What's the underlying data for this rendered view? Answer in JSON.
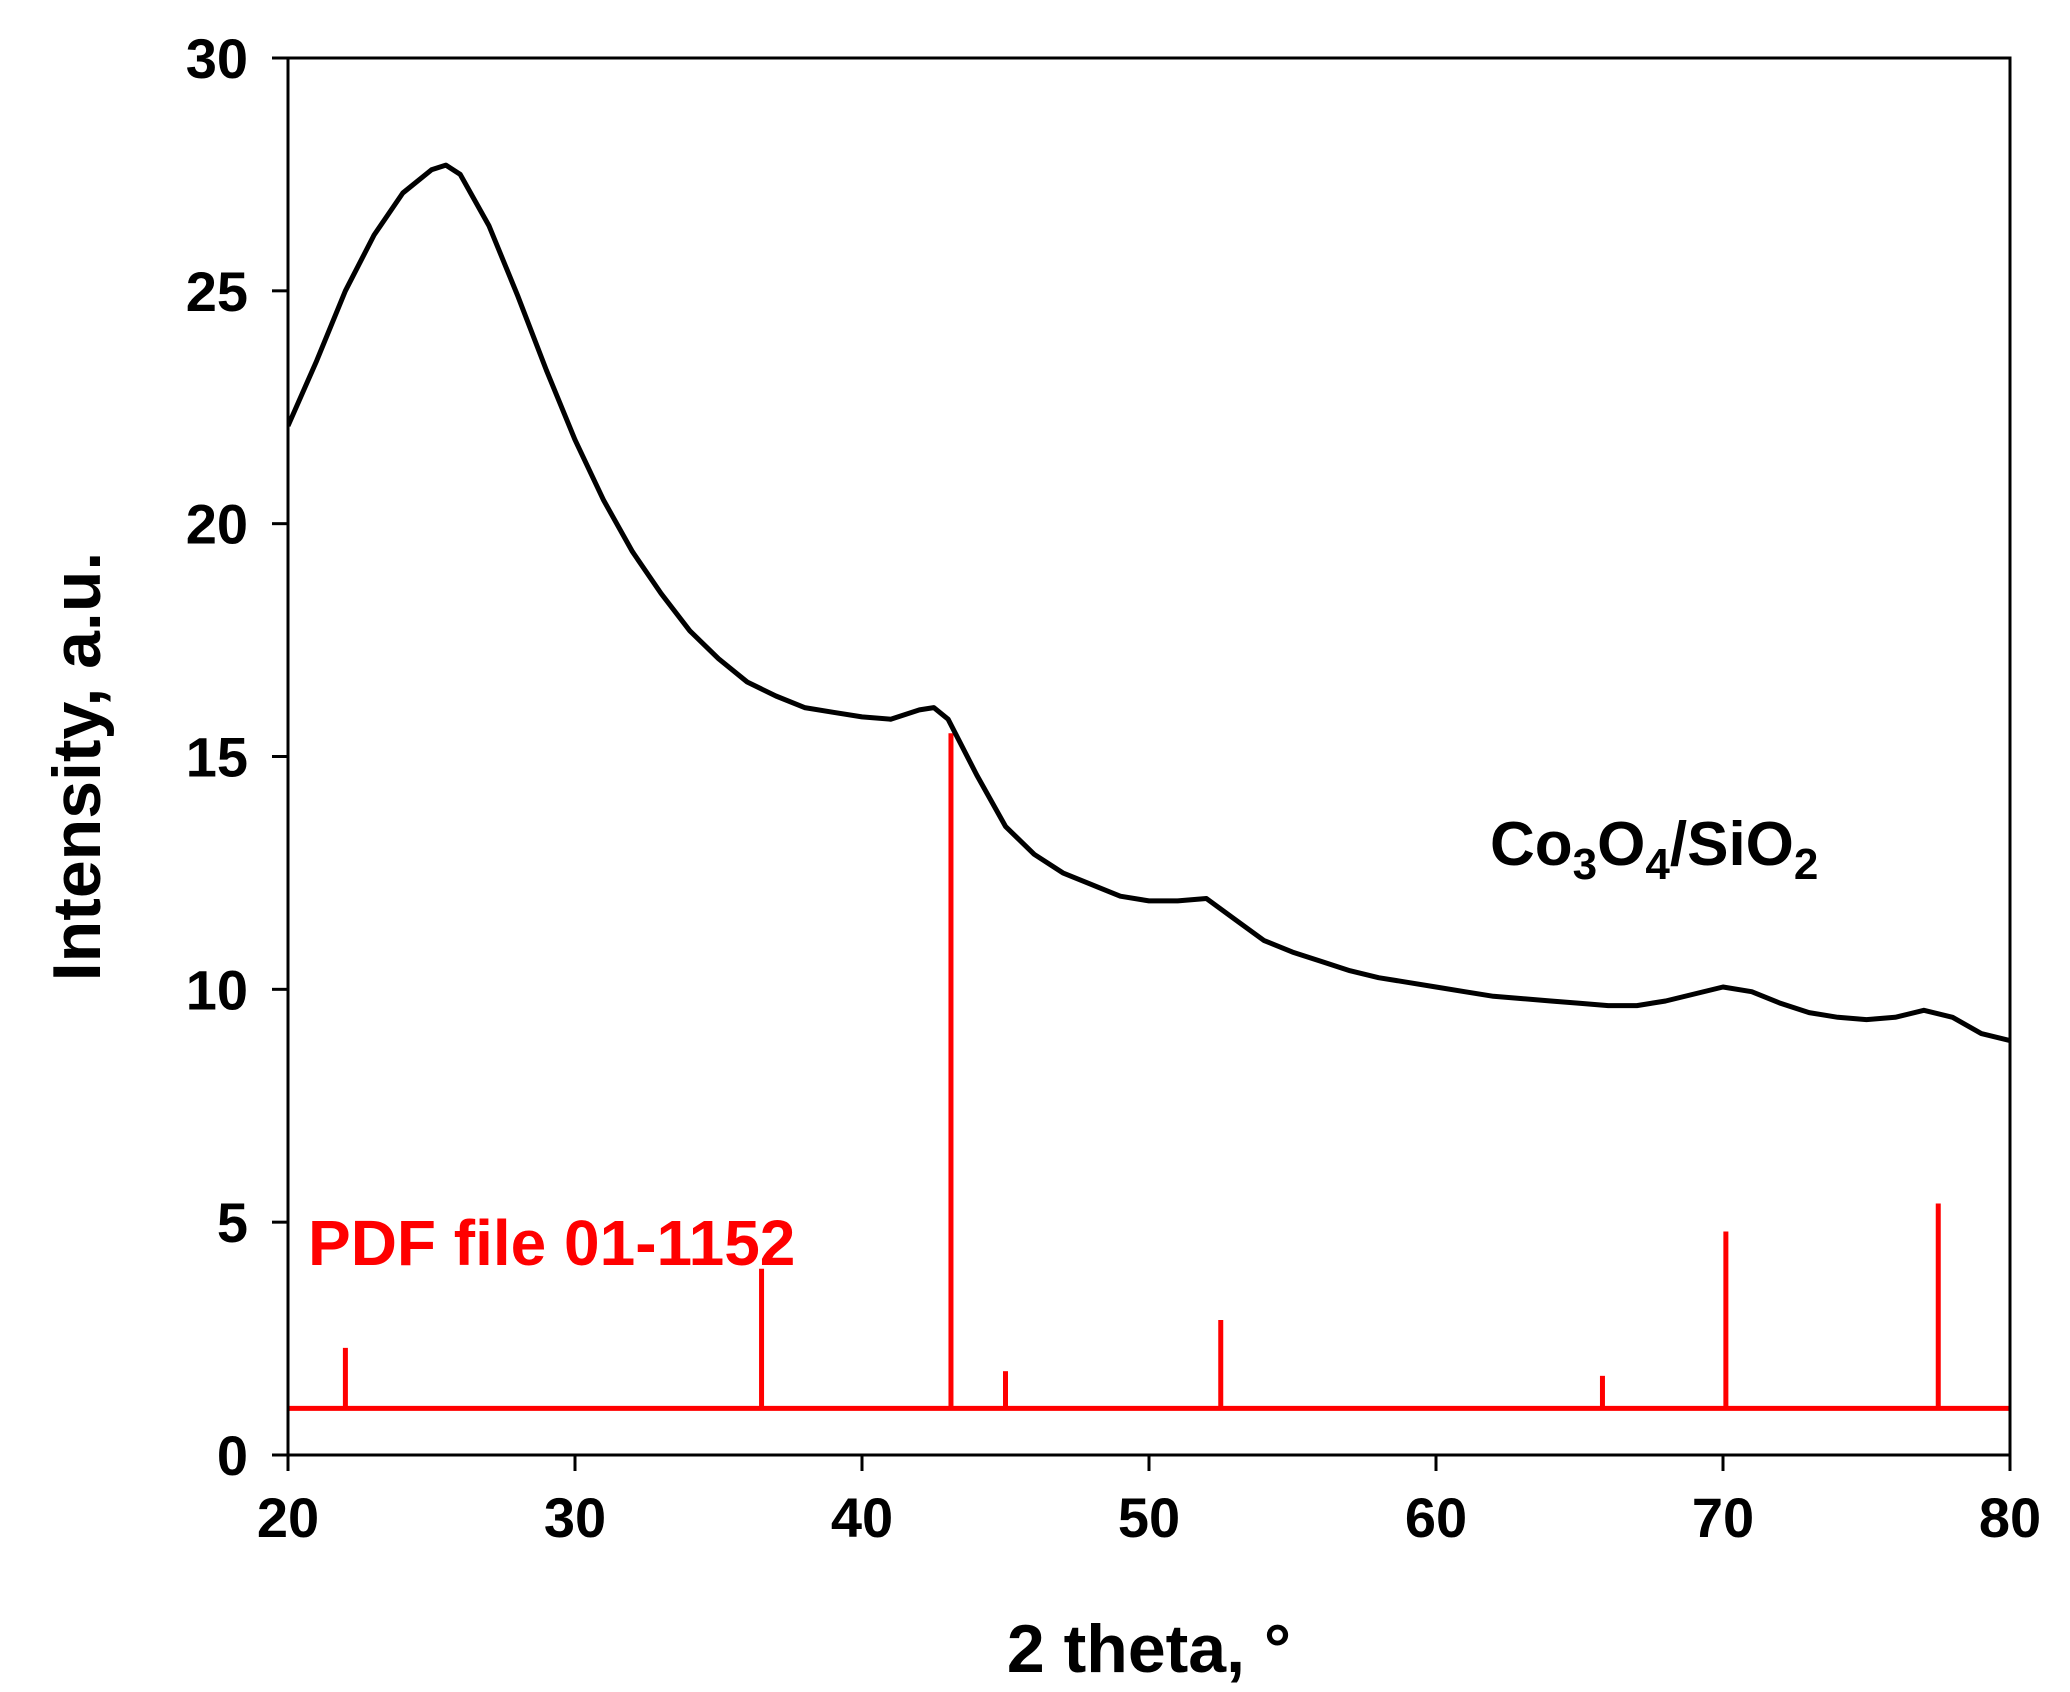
{
  "chart_data": {
    "type": "line",
    "title": "",
    "xlabel": "2 theta, °",
    "ylabel": "Intensity, a.u.",
    "xlim": [
      20,
      80
    ],
    "ylim": [
      0,
      30
    ],
    "xticks": [
      20,
      30,
      40,
      50,
      60,
      70,
      80
    ],
    "yticks": [
      0,
      5,
      10,
      15,
      20,
      25,
      30
    ],
    "grid": false,
    "series": [
      {
        "name": "Co3O4/SiO2",
        "color": "#000000",
        "x": [
          20,
          21,
          22,
          23,
          24,
          25,
          25.5,
          26,
          27,
          28,
          29,
          30,
          31,
          32,
          33,
          34,
          35,
          36,
          37,
          38,
          39,
          40,
          41,
          42,
          42.5,
          43,
          44,
          45,
          46,
          47,
          48,
          49,
          50,
          51,
          52,
          53,
          54,
          55,
          56,
          57,
          58,
          59,
          60,
          61,
          62,
          63,
          64,
          65,
          66,
          67,
          68,
          69,
          70,
          71,
          72,
          73,
          74,
          75,
          76,
          77,
          78,
          79,
          80
        ],
        "y": [
          22.1,
          23.5,
          25.0,
          26.2,
          27.1,
          27.6,
          27.7,
          27.5,
          26.4,
          24.9,
          23.3,
          21.8,
          20.5,
          19.4,
          18.5,
          17.7,
          17.1,
          16.6,
          16.3,
          16.05,
          15.95,
          15.85,
          15.8,
          16.0,
          16.05,
          15.8,
          14.6,
          13.5,
          12.9,
          12.5,
          12.25,
          12.0,
          11.9,
          11.9,
          11.95,
          11.5,
          11.05,
          10.8,
          10.6,
          10.4,
          10.25,
          10.15,
          10.05,
          9.95,
          9.85,
          9.8,
          9.75,
          9.7,
          9.65,
          9.65,
          9.75,
          9.9,
          10.05,
          9.95,
          9.7,
          9.5,
          9.4,
          9.35,
          9.4,
          9.55,
          9.4,
          9.05,
          8.9
        ]
      },
      {
        "name": "PDF file 01-1152",
        "color": "#ff0000",
        "kind": "stick",
        "baseline": 1.0,
        "x": [
          22.0,
          36.5,
          43.1,
          45.0,
          52.5,
          65.8,
          70.1,
          77.5
        ],
        "y": [
          2.3,
          4.0,
          15.5,
          1.8,
          2.9,
          1.7,
          4.8,
          5.4
        ]
      }
    ],
    "annotations": {
      "sample_label": {
        "base1": "Co",
        "sub1": "3",
        "base2": "O",
        "sub2": "4",
        "base3": "/SiO",
        "sub3": "2"
      },
      "reference_label": "PDF file 01-1152"
    }
  }
}
